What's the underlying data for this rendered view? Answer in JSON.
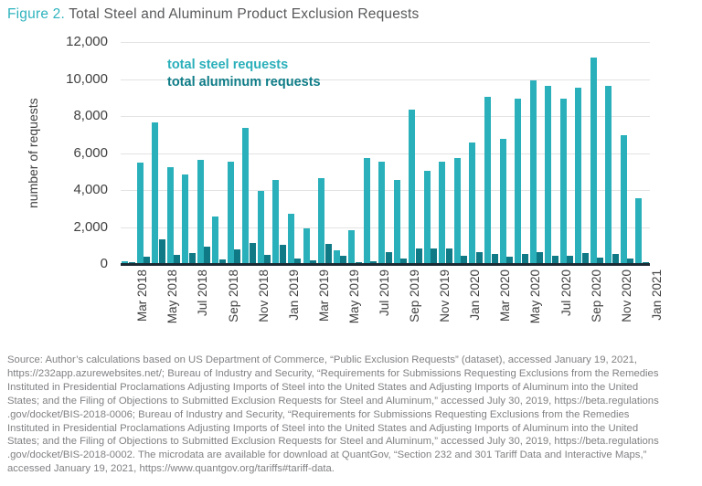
{
  "title": {
    "figure_label": "Figure 2.",
    "text": " Total Steel and Aluminum Product Exclusion Requests"
  },
  "legend": {
    "steel": "total steel requests",
    "aluminum": "total aluminum requests"
  },
  "colors": {
    "steel_bar": "#29b0ba",
    "aluminum_bar": "#0f7a85",
    "figure_label": "#2eb3bd",
    "title_text": "#58595b",
    "axis_text": "#414042",
    "gridline": "#e3e3e3",
    "baseline": "#1b2a33",
    "source_text": "#808184"
  },
  "chart_data": {
    "type": "bar",
    "title": "Total Steel and Aluminum Product Exclusion Requests",
    "xlabel": "",
    "ylabel": "number of requests",
    "ylim": [
      0,
      12000
    ],
    "ytick_interval": 2000,
    "ytick_labels": [
      "0",
      "2,000",
      "4,000",
      "6,000",
      "8,000",
      "10,000",
      "12,000"
    ],
    "grid": "horizontal",
    "legend_position": "top-left-inside",
    "categories": [
      "Mar 2018",
      "Apr 2018",
      "May 2018",
      "Jun 2018",
      "Jul 2018",
      "Aug 2018",
      "Sep 2018",
      "Oct 2018",
      "Nov 2018",
      "Dec 2018",
      "Jan 2019",
      "Feb 2019",
      "Mar 2019",
      "Apr 2019",
      "May 2019",
      "Jun 2019",
      "Jul 2019",
      "Aug 2019",
      "Sep 2019",
      "Oct 2019",
      "Nov 2019",
      "Dec 2019",
      "Jan 2020",
      "Feb 2020",
      "Mar 2020",
      "Apr 2020",
      "May 2020",
      "Jun 2020",
      "Jul 2020",
      "Aug 2020",
      "Sep 2020",
      "Oct 2020",
      "Nov 2020",
      "Dec 2020",
      "Jan 2021"
    ],
    "xtick_labels_shown": [
      "Mar 2018",
      "May 2018",
      "Jul 2018",
      "Sep 2018",
      "Nov 2018",
      "Jan 2019",
      "Mar 2019",
      "May 2019",
      "Jul 2019",
      "Sep 2019",
      "Nov 2019",
      "Jan 2020",
      "Mar 2020",
      "May 2020",
      "Jul 2020",
      "Sep 2020",
      "Nov 2020",
      "Jan 2021"
    ],
    "series": [
      {
        "name": "total steel requests",
        "color": "#29b0ba",
        "values": [
          100,
          5450,
          7600,
          5200,
          4800,
          5600,
          2500,
          5500,
          7300,
          3900,
          4500,
          2650,
          1900,
          4600,
          700,
          1800,
          5700,
          5500,
          4500,
          8300,
          5000,
          5500,
          5700,
          6500,
          9000,
          6700,
          8900,
          9900,
          9600,
          8900,
          9500,
          11100,
          9600,
          6900,
          3500
        ]
      },
      {
        "name": "total aluminum requests",
        "color": "#0f7a85",
        "values": [
          50,
          350,
          1300,
          450,
          550,
          900,
          200,
          750,
          1100,
          450,
          1000,
          250,
          150,
          1050,
          400,
          50,
          100,
          600,
          250,
          800,
          800,
          800,
          400,
          600,
          500,
          350,
          500,
          600,
          400,
          400,
          550,
          300,
          500,
          250,
          50
        ]
      }
    ]
  },
  "source": {
    "lines": [
      "Source: Author’s calculations based on US Department of Commerce, “Public Exclusion Requests” (dataset), accessed January 19, 2021,",
      "https://232app.azurewebsites.net/; Bureau of Industry and Security, “Requirements for Submissions Requesting Exclusions from the Remedies",
      "Instituted in Presidential Proclamations Adjusting Imports of Steel into the United States and Adjusting Imports of Aluminum into the United",
      "States; and the Filing of Objections to Submitted Exclusion Requests for Steel and Aluminum,” accessed July 30, 2019, https://beta.regulations",
      ".gov/docket/BIS-2018-0006; Bureau of Industry and Security, “Requirements for Submissions Requesting Exclusions from the Remedies",
      "Instituted in Presidential Proclamations Adjusting Imports of Steel into the United States and Adjusting Imports of Aluminum into the United",
      "States; and the Filing of Objections to Submitted Exclusion Requests for Steel and Aluminum,” accessed July 30, 2019, https://beta.regulations",
      ".gov/docket/BIS-2018-0002. The microdata are available for download at QuantGov, “Section 232 and 301 Tariff Data and Interactive Maps,”",
      "accessed January 19, 2021, https://www.quantgov.org/tariffs#tariff-data."
    ]
  }
}
